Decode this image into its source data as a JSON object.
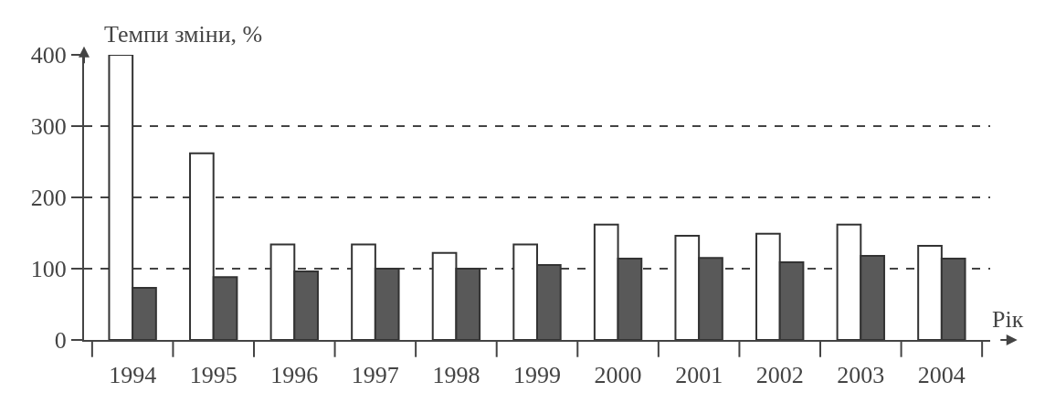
{
  "chart_data": {
    "type": "bar",
    "ylabel": "Темпи зміни, %",
    "xlabel": "Рік",
    "categories": [
      "1994",
      "1995",
      "1996",
      "1997",
      "1998",
      "1999",
      "2000",
      "2001",
      "2002",
      "2003",
      "2004"
    ],
    "series": [
      {
        "color": "#ffffff",
        "values": [
          400,
          262,
          134,
          134,
          122,
          134,
          162,
          146,
          149,
          162,
          132
        ]
      },
      {
        "color": "#595959",
        "values": [
          73,
          88,
          96,
          100,
          100,
          105,
          114,
          115,
          109,
          118,
          114
        ]
      }
    ],
    "ylim": [
      0,
      400
    ],
    "yticks": [
      0,
      100,
      200,
      300,
      400
    ],
    "grid": "y"
  }
}
